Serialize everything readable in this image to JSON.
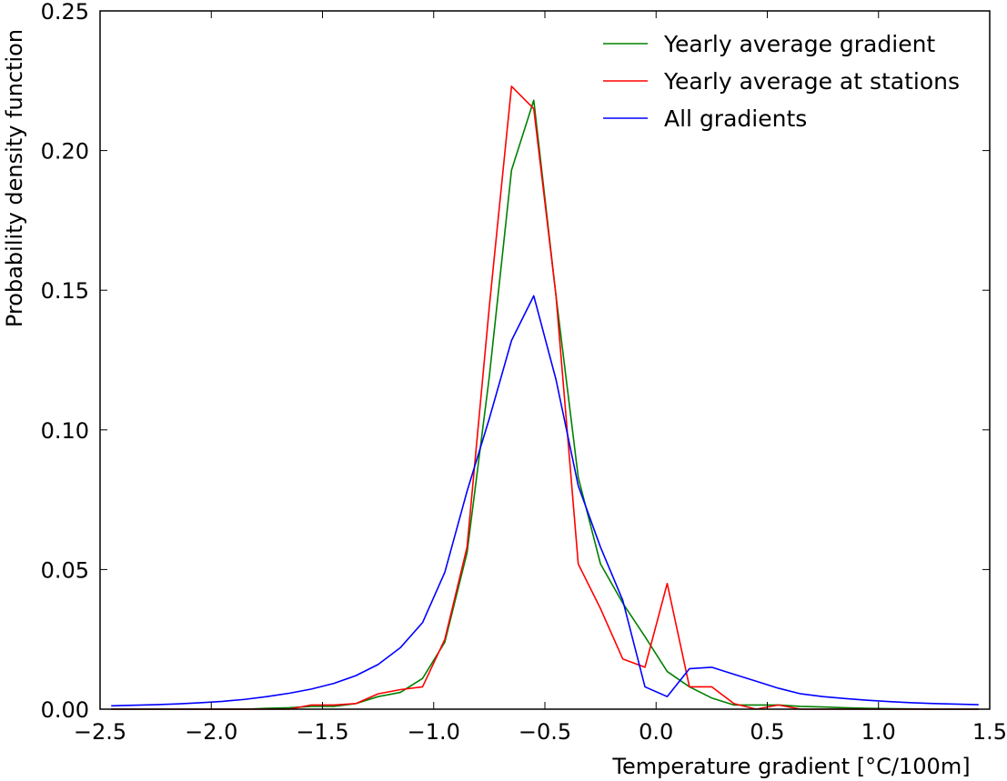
{
  "chart_data": {
    "type": "line",
    "xlabel": "Temperature gradient [°C/100m]",
    "ylabel": "Probability density function",
    "xlim": [
      -2.5,
      1.5
    ],
    "ylim": [
      0.0,
      0.25
    ],
    "xticks": [
      "−2.5",
      "−2.0",
      "−1.5",
      "−1.0",
      "−0.5",
      "0.0",
      "0.5",
      "1.0",
      "1.5"
    ],
    "yticks": [
      "0.00",
      "0.05",
      "0.10",
      "0.15",
      "0.20",
      "0.25"
    ],
    "grid": false,
    "legend_position": "top-right",
    "series": [
      {
        "name": "Yearly average gradient",
        "color": "#008000",
        "x": [
          -2.45,
          -2.35,
          -2.25,
          -2.15,
          -2.05,
          -1.95,
          -1.85,
          -1.75,
          -1.65,
          -1.55,
          -1.45,
          -1.35,
          -1.25,
          -1.15,
          -1.05,
          -0.95,
          -0.85,
          -0.75,
          -0.65,
          -0.55,
          -0.45,
          -0.35,
          -0.25,
          -0.15,
          -0.05,
          0.05,
          0.15,
          0.25,
          0.35,
          0.45,
          0.55,
          0.65,
          0.75,
          0.85,
          0.95,
          1.05,
          1.15,
          1.25,
          1.35,
          1.45
        ],
        "y": [
          0.0,
          0.0,
          0.0,
          0.0,
          0.0,
          0.0,
          0.0,
          0.0003,
          0.0005,
          0.001,
          0.001,
          0.002,
          0.0045,
          0.006,
          0.011,
          0.024,
          0.056,
          0.119,
          0.193,
          0.218,
          0.148,
          0.083,
          0.052,
          0.038,
          0.026,
          0.0135,
          0.008,
          0.004,
          0.0015,
          0.0015,
          0.0015,
          0.001,
          0.0008,
          0.0005,
          0.0003,
          0.0002,
          0.0001,
          0.0,
          0.0,
          0.0
        ]
      },
      {
        "name": "Yearly average at stations",
        "color": "#ff0000",
        "x": [
          -2.45,
          -2.35,
          -2.25,
          -2.15,
          -2.05,
          -1.95,
          -1.85,
          -1.75,
          -1.65,
          -1.55,
          -1.45,
          -1.35,
          -1.25,
          -1.15,
          -1.05,
          -0.95,
          -0.85,
          -0.75,
          -0.65,
          -0.55,
          -0.45,
          -0.35,
          -0.25,
          -0.15,
          -0.05,
          0.05,
          0.15,
          0.25,
          0.35,
          0.45,
          0.55,
          0.65,
          0.75,
          0.85,
          0.95,
          1.05,
          1.15,
          1.25,
          1.35,
          1.45
        ],
        "y": [
          0.0,
          0.0,
          0.0,
          0.0,
          0.0,
          0.0,
          0.0,
          0.0,
          0.0,
          0.0015,
          0.0015,
          0.002,
          0.0055,
          0.007,
          0.008,
          0.025,
          0.058,
          0.144,
          0.223,
          0.215,
          0.148,
          0.052,
          0.036,
          0.018,
          0.015,
          0.045,
          0.008,
          0.008,
          0.002,
          0.0,
          0.0015,
          0.0,
          0.0,
          0.0,
          0.0,
          0.0,
          0.0,
          0.0,
          0.0,
          0.0
        ]
      },
      {
        "name": "All gradients",
        "color": "#0000ff",
        "x": [
          -2.45,
          -2.35,
          -2.25,
          -2.15,
          -2.05,
          -1.95,
          -1.85,
          -1.75,
          -1.65,
          -1.55,
          -1.45,
          -1.35,
          -1.25,
          -1.15,
          -1.05,
          -0.95,
          -0.85,
          -0.75,
          -0.65,
          -0.55,
          -0.45,
          -0.35,
          -0.25,
          -0.15,
          -0.05,
          0.05,
          0.15,
          0.25,
          0.35,
          0.45,
          0.55,
          0.65,
          0.75,
          0.85,
          0.95,
          1.05,
          1.15,
          1.25,
          1.35,
          1.45
        ],
        "y": [
          0.0012,
          0.0014,
          0.0016,
          0.0019,
          0.0023,
          0.0028,
          0.0035,
          0.0045,
          0.0057,
          0.0072,
          0.0092,
          0.012,
          0.016,
          0.022,
          0.031,
          0.049,
          0.078,
          0.104,
          0.132,
          0.148,
          0.118,
          0.08,
          0.058,
          0.039,
          0.008,
          0.0045,
          0.0145,
          0.015,
          0.0125,
          0.01,
          0.0075,
          0.0055,
          0.0045,
          0.0038,
          0.0032,
          0.0027,
          0.0023,
          0.002,
          0.0018,
          0.0016
        ]
      }
    ]
  }
}
